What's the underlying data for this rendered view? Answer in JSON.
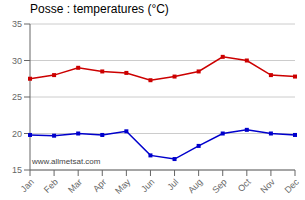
{
  "chart_data": {
    "type": "line",
    "title": "Posse : temperatures (°C)",
    "categories": [
      "Jan",
      "Feb",
      "Mar",
      "Apr",
      "May",
      "Jun",
      "Jul",
      "Aug",
      "Sep",
      "Oct",
      "Nov",
      "Dec"
    ],
    "series": [
      {
        "color": "#cc0000",
        "marker": "square",
        "values": [
          27.5,
          28.0,
          29.0,
          28.5,
          28.3,
          27.3,
          27.8,
          28.5,
          30.5,
          30.0,
          28.0,
          27.8
        ]
      },
      {
        "color": "#0000cc",
        "marker": "square",
        "values": [
          19.8,
          19.7,
          20.0,
          19.8,
          20.3,
          17.0,
          16.5,
          18.3,
          20.0,
          20.5,
          20.0,
          19.8
        ]
      }
    ],
    "ylim": [
      15,
      35
    ],
    "yticks": [
      15,
      20,
      25,
      30,
      35
    ],
    "grid": true,
    "annotations": [
      "www.allmetsat.com"
    ]
  }
}
